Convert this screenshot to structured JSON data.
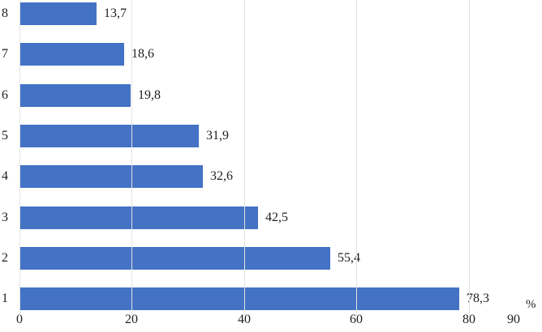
{
  "chart_data": {
    "type": "bar",
    "orientation": "horizontal",
    "title": "",
    "xlabel": "%",
    "ylabel": "",
    "categories": [
      "8",
      "7",
      "6",
      "5",
      "4",
      "3",
      "2",
      "1"
    ],
    "values": [
      13.7,
      18.6,
      19.8,
      31.9,
      32.6,
      42.5,
      55.4,
      78.3
    ],
    "value_labels": [
      "13,7",
      "18,6",
      "19,8",
      "31,9",
      "32,6",
      "42,5",
      "55,4",
      "78,3"
    ],
    "xlim": [
      0,
      90
    ],
    "x_ticks": [
      0,
      20,
      40,
      60,
      80,
      90
    ],
    "x_tick_labels": [
      "0",
      "20",
      "40",
      "60",
      "80",
      "90"
    ],
    "gridline_values": [
      0,
      20,
      40,
      60,
      80
    ],
    "grid": true,
    "legend": false,
    "bar_color": "#4472C4",
    "gridline_color": "#E3E3E3",
    "text_color": "#1f1f1f"
  }
}
